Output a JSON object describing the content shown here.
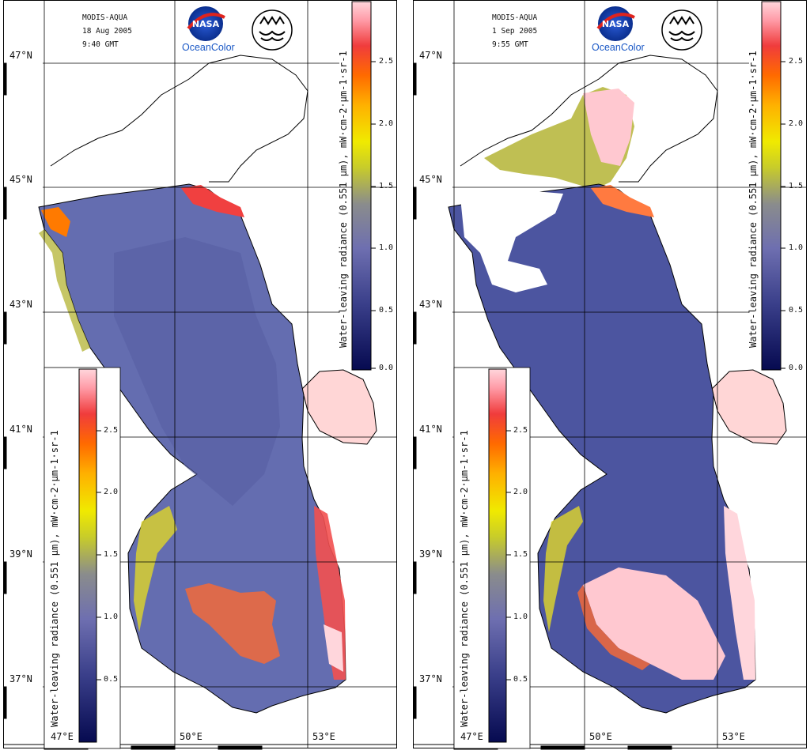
{
  "colors": {
    "water_low": "#0a1060",
    "water_mid": "#5a64a8",
    "water_typical": "#646db0",
    "land": "#ffffff",
    "scale_yellow": "#e6e200",
    "scale_orange": "#ff7a00",
    "scale_red": "#f23a3a",
    "scale_pink": "#ffd0d0",
    "grid": "#000000"
  },
  "icons": {
    "agency_logo": "nasa-meatball-icon",
    "institute_logo": "institute-emblem-icon"
  },
  "panels": [
    {
      "sensor": "MODIS-AQUA",
      "date": "18 Aug 2005",
      "time": "9:40 GMT",
      "logo_text": "OceanColor",
      "colorbar_label": "Water-leaving radiance (0.551 µm), mW·cm-2·µm-1·sr-1",
      "colorbar_ticks": [
        "2.5",
        "2.0",
        "1.5",
        "1.0",
        "0.5",
        "0.0"
      ],
      "lower_colorbar_ticks": [
        "2.5",
        "2.0",
        "1.5",
        "1.0",
        "0.5"
      ],
      "lat_labels": [
        "47°N",
        "45°N",
        "43°N",
        "41°N",
        "39°N",
        "37°N"
      ],
      "lon_labels": [
        "47°E",
        "50°E",
        "53°E"
      ]
    },
    {
      "sensor": "MODIS-AQUA",
      "date": "1 Sep 2005",
      "time": "9:55 GMT",
      "logo_text": "OceanColor",
      "colorbar_label": "Water-leaving radiance (0.551 µm), mW·cm-2·µm-1·sr-1",
      "colorbar_ticks": [
        "2.5",
        "2.0",
        "1.5",
        "1.0",
        "0.5",
        "0.0"
      ],
      "lower_colorbar_ticks": [
        "2.5",
        "2.0",
        "1.5",
        "1.0",
        "0.5"
      ],
      "lat_labels": [
        "47°N",
        "45°N",
        "43°N",
        "41°N",
        "39°N",
        "37°N"
      ],
      "lon_labels": [
        "47°E",
        "50°E",
        "53°E"
      ]
    }
  ]
}
